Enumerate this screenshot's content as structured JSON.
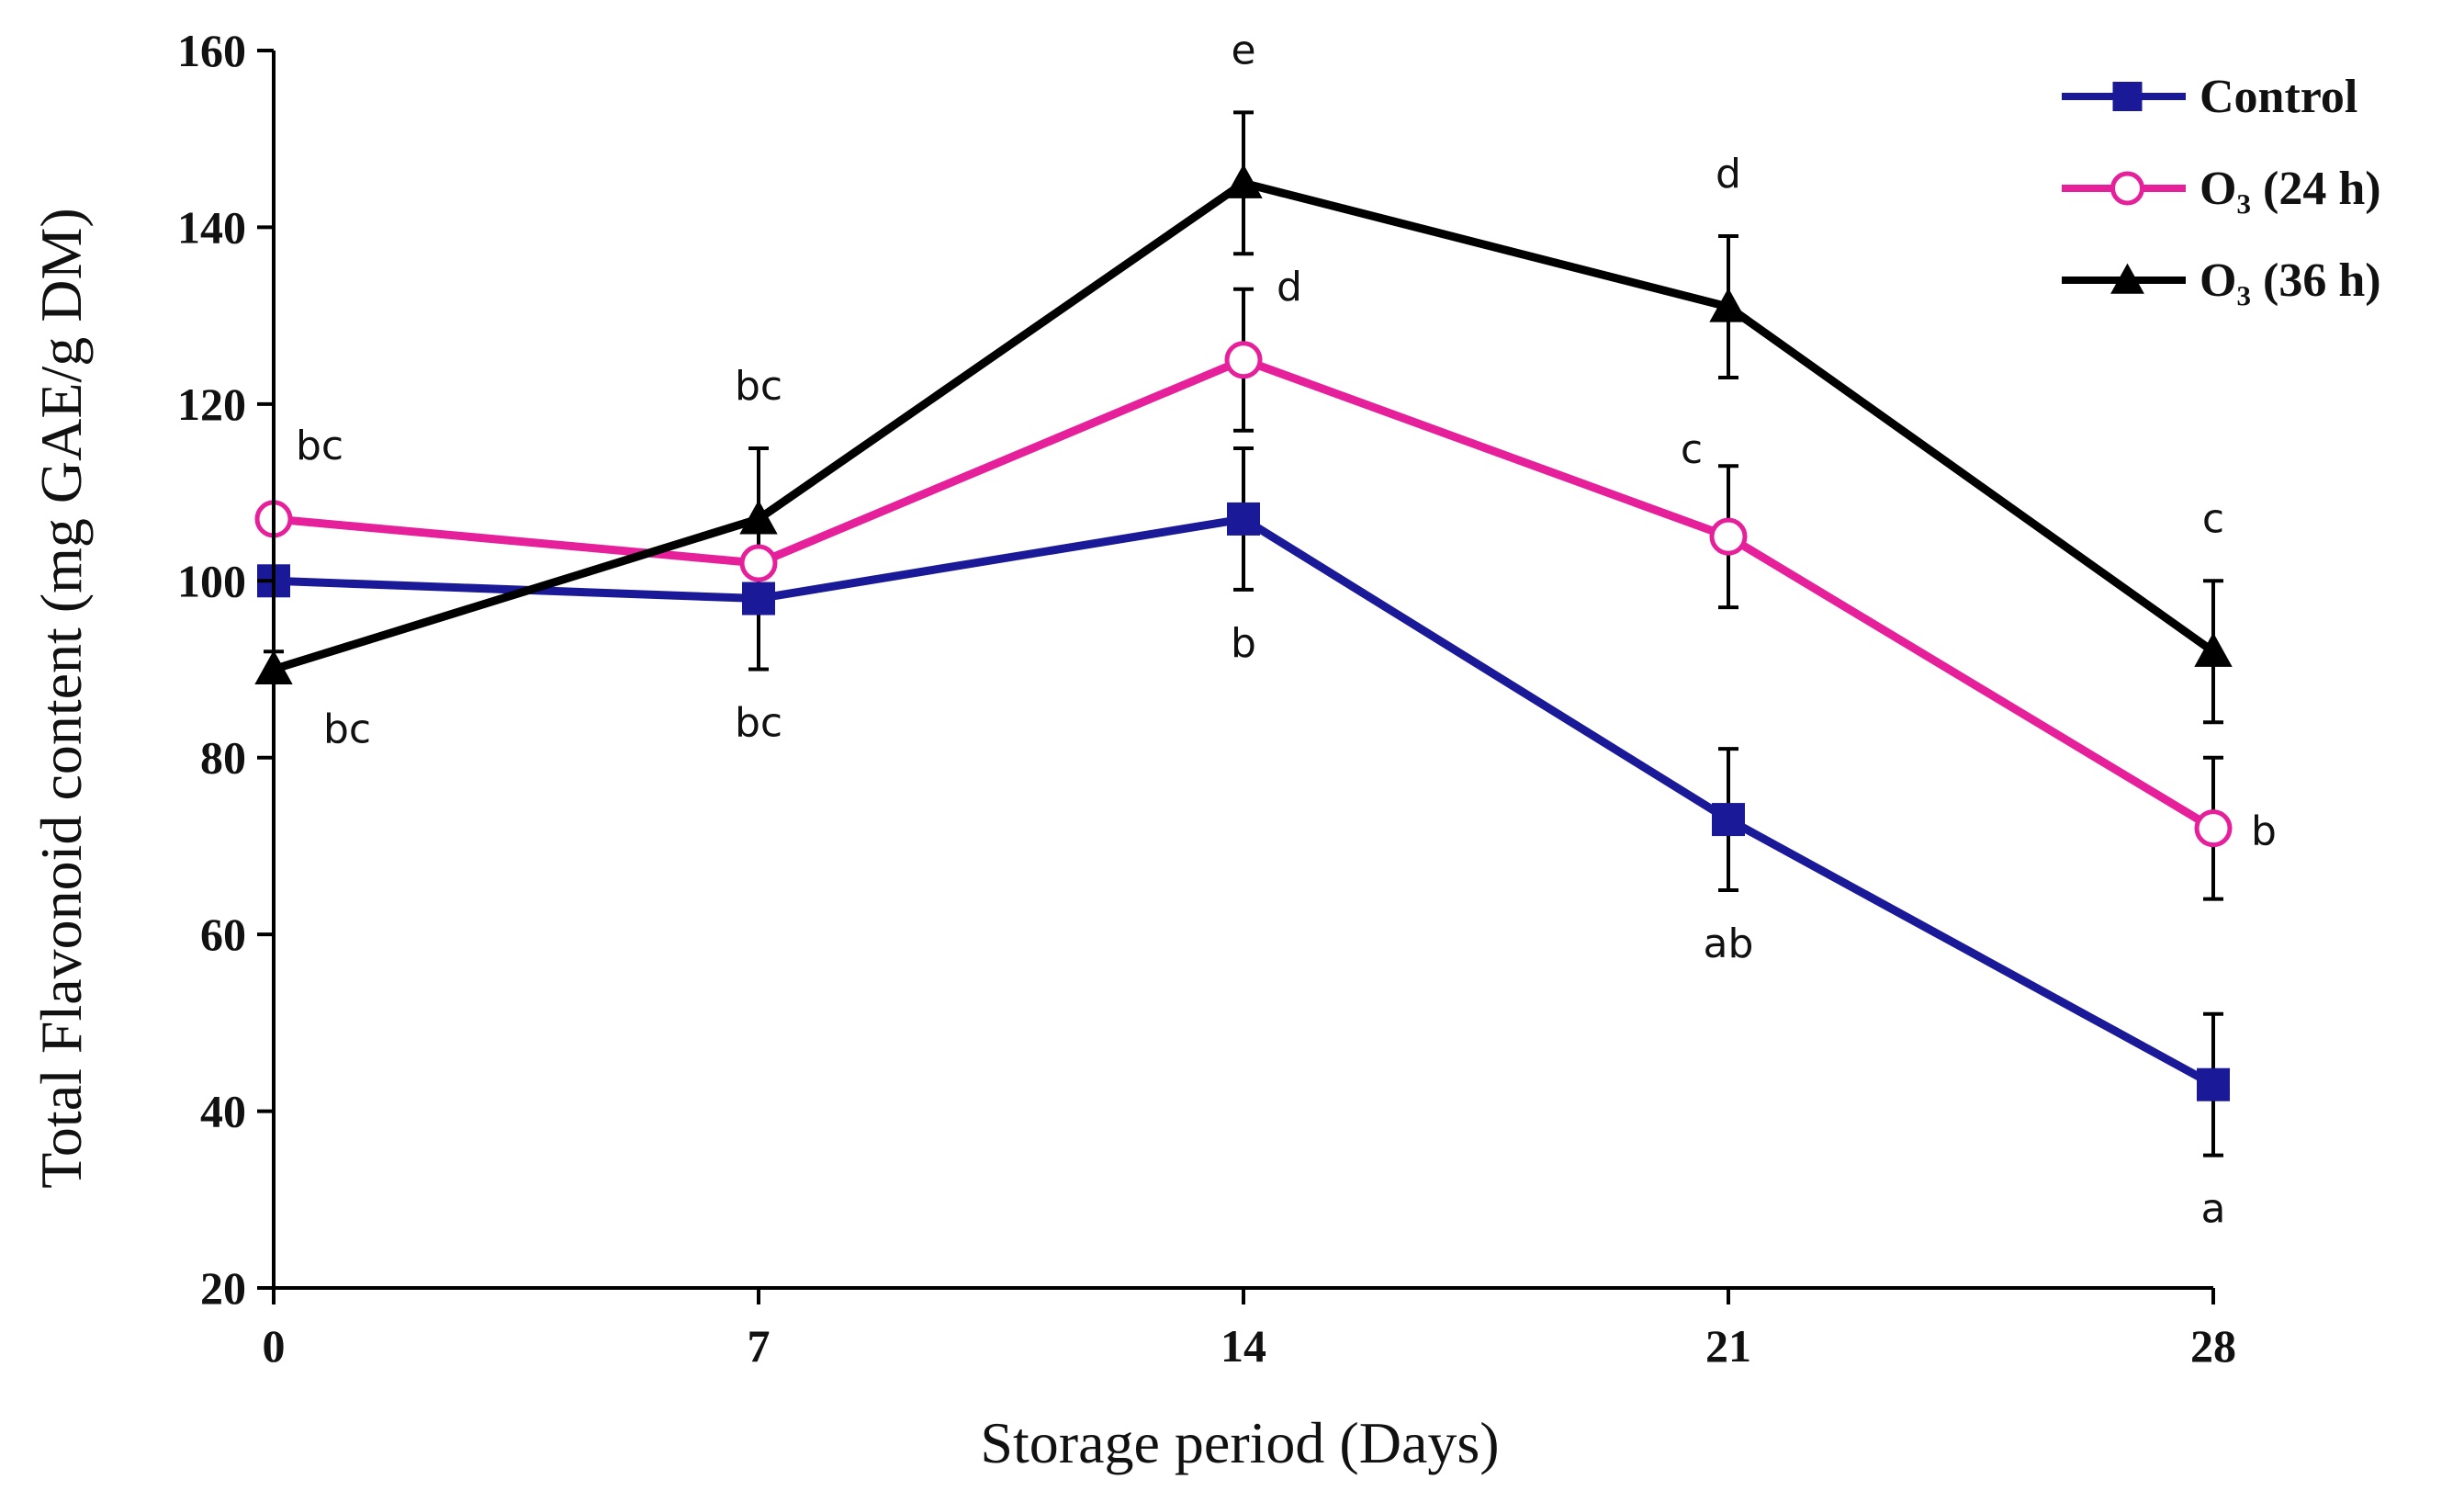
{
  "chart_data": {
    "type": "line",
    "title": "",
    "xlabel": "Storage period (Days)",
    "ylabel": "Total Flavonoid content (mg GAE/g DM)",
    "x": [
      0,
      7,
      14,
      21,
      28
    ],
    "x_tick_labels": [
      "0",
      "7",
      "14",
      "21",
      "28"
    ],
    "xlim": [
      0,
      28
    ],
    "ylim": [
      20,
      160
    ],
    "y_ticks": [
      20,
      40,
      60,
      80,
      100,
      120,
      140,
      160
    ],
    "y_tick_labels": [
      "20",
      "40",
      "60",
      "80",
      "100",
      "120",
      "140",
      "160"
    ],
    "grid": false,
    "legend_position": "top-right",
    "series": [
      {
        "name": "Control",
        "legend_label": "Control",
        "color": "#1a1a99",
        "marker": "square",
        "values": [
          100,
          98,
          107,
          73,
          43
        ],
        "errors": [
          8,
          8,
          8,
          8,
          8
        ],
        "sig_letters": [
          "",
          "bc",
          "b",
          "ab",
          "a"
        ],
        "sig_side": [
          "",
          "below",
          "below",
          "below",
          "below"
        ]
      },
      {
        "name": "O3 (24 h)",
        "legend_label": "O₃ (24 h)",
        "color": "#e6209a",
        "marker": "open-circle",
        "values": [
          107,
          102,
          125,
          105,
          72
        ],
        "errors": [
          0,
          0,
          8,
          8,
          8
        ],
        "sig_letters": [
          "bc",
          "",
          "d",
          "c",
          "b"
        ],
        "sig_side": [
          "above-right",
          "",
          "above-right",
          "above-left",
          "right"
        ]
      },
      {
        "name": "O3 (36 h)",
        "legend_label": "O₃ (36 h)",
        "color": "#000000",
        "marker": "triangle",
        "values": [
          90,
          107,
          145,
          131,
          92
        ],
        "errors": [
          0,
          8,
          8,
          8,
          8
        ],
        "sig_letters": [
          "bc",
          "bc",
          "e",
          "d",
          "c"
        ],
        "sig_side": [
          "below-right",
          "above",
          "above",
          "above",
          "above"
        ]
      }
    ]
  }
}
